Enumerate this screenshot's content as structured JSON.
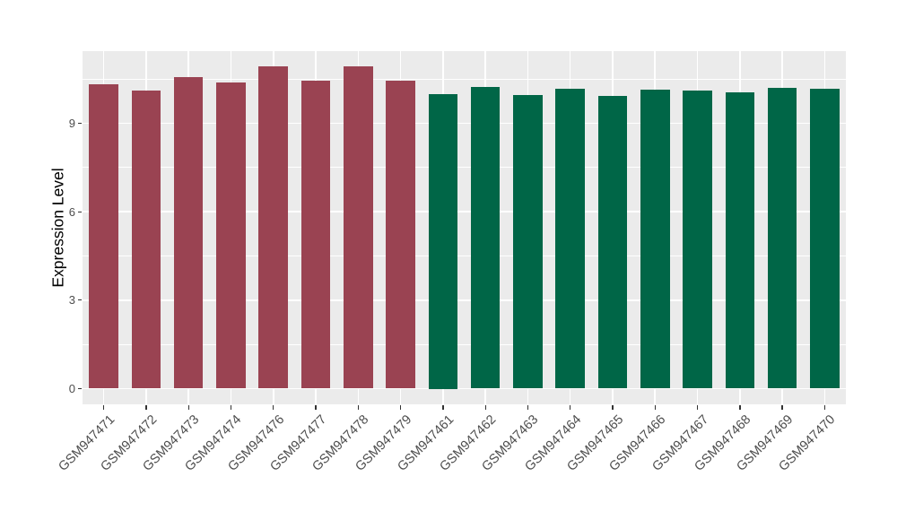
{
  "chart_data": {
    "type": "bar",
    "title": "",
    "xlabel": "",
    "ylabel": "Expression Level",
    "categories": [
      "GSM947471",
      "GSM947472",
      "GSM947473",
      "GSM947474",
      "GSM947476",
      "GSM947477",
      "GSM947478",
      "GSM947479",
      "GSM947461",
      "GSM947462",
      "GSM947463",
      "GSM947464",
      "GSM947465",
      "GSM947466",
      "GSM947467",
      "GSM947468",
      "GSM947469",
      "GSM947470"
    ],
    "values": [
      10.31,
      10.11,
      10.57,
      10.37,
      10.92,
      10.45,
      10.92,
      10.45,
      10.0,
      10.23,
      9.96,
      10.18,
      9.91,
      10.13,
      10.1,
      10.04,
      10.21,
      10.16
    ],
    "bar_colors": [
      "#9A4352",
      "#9A4352",
      "#9A4352",
      "#9A4352",
      "#9A4352",
      "#9A4352",
      "#9A4352",
      "#9A4352",
      "#006647",
      "#006647",
      "#006647",
      "#006647",
      "#006647",
      "#006647",
      "#006647",
      "#006647",
      "#006647",
      "#006647"
    ],
    "yticks": [
      0,
      3,
      6,
      9
    ],
    "minor_gridlines": [
      1.5,
      4.5,
      7.5,
      10.5
    ],
    "ylim": [
      -0.53,
      11.44
    ],
    "grid": true,
    "legend_position": "none",
    "styles": {
      "panel_background": "#EBEBEB",
      "gridline_color": "#FFFFFF",
      "tick_mark_color": "#333333",
      "axis_text_color": "#4D4D4D",
      "axis_title_color": "#000000",
      "group1_bar_color": "#9A4352",
      "group2_bar_color": "#006647"
    }
  }
}
